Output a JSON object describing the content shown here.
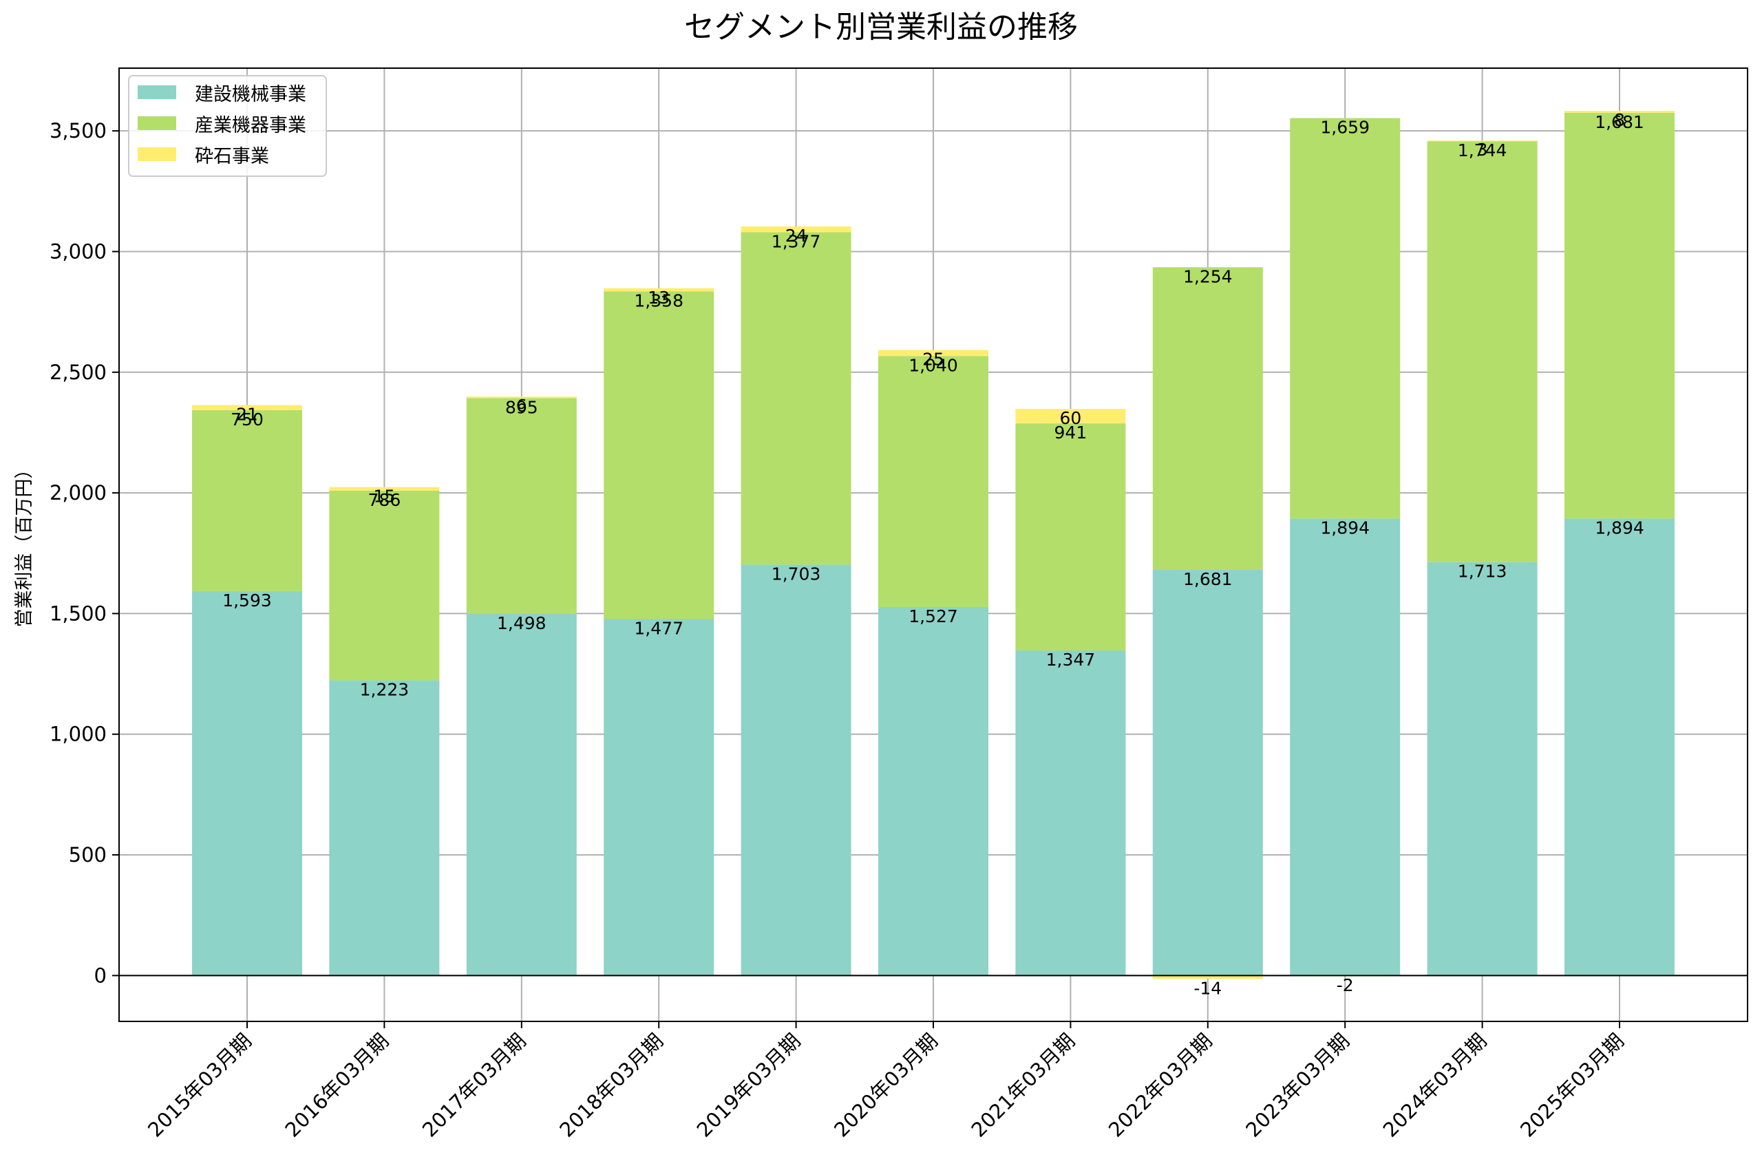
{
  "chart_data": {
    "type": "bar",
    "stacked": true,
    "title": "セグメント別営業利益の推移",
    "xlabel": "",
    "ylabel": "営業利益（百万円）",
    "ylim": [
      -190,
      3760
    ],
    "yticks": [
      0,
      500,
      1000,
      1500,
      2000,
      2500,
      3000,
      3500
    ],
    "ytick_labels": [
      "0",
      "500",
      "1,000",
      "1,500",
      "2,000",
      "2,500",
      "3,000",
      "3,500"
    ],
    "grid": true,
    "legend_position": "top-left",
    "categories": [
      "2015年03月期",
      "2016年03月期",
      "2017年03月期",
      "2018年03月期",
      "2019年03月期",
      "2020年03月期",
      "2021年03月期",
      "2022年03月期",
      "2023年03月期",
      "2024年03月期",
      "2025年03月期"
    ],
    "series": [
      {
        "name": "建設機械事業",
        "color": "#8dd3c7",
        "values": [
          1593,
          1223,
          1498,
          1477,
          1703,
          1527,
          1347,
          1681,
          1894,
          1713,
          1894
        ]
      },
      {
        "name": "産業機器事業",
        "color": "#b3de69",
        "values": [
          750,
          786,
          895,
          1358,
          1377,
          1040,
          941,
          1254,
          1659,
          1744,
          1681
        ]
      },
      {
        "name": "砕石事業",
        "color": "#ffed6f",
        "values": [
          21,
          15,
          6,
          13,
          24,
          25,
          60,
          -14,
          -2,
          3,
          8
        ]
      }
    ]
  }
}
